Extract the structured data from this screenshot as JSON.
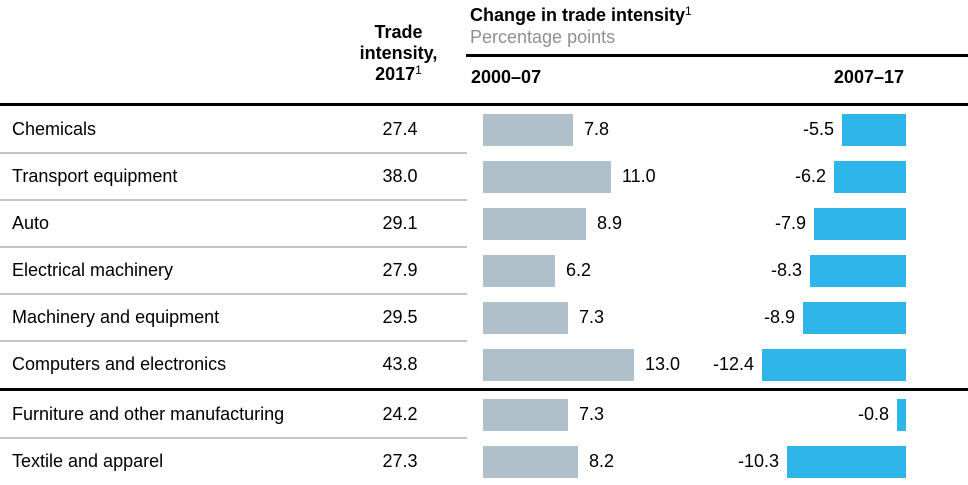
{
  "header": {
    "trade_col": {
      "lines": [
        "Trade",
        "intensity,",
        "2017"
      ],
      "footnote": "1"
    },
    "group": {
      "title": "Change in trade intensity",
      "footnote": "1",
      "subtitle": "Percentage points"
    },
    "periods": [
      "2000–07",
      "2007–17"
    ]
  },
  "colors": {
    "gray_bar": "#afc0ca",
    "blue_bar": "#2eb5e9",
    "subtitle_gray": "#8e9092",
    "separator": "#c5c5c5",
    "rule_black": "#000000"
  },
  "chart_data": {
    "type": "bar",
    "title": "Change in trade intensity",
    "subtitle": "Percentage points",
    "categories": [
      "Chemicals",
      "Transport equipment",
      "Auto",
      "Electrical machinery",
      "Machinery and equipment",
      "Computers and electronics",
      "Furniture and other manufacturing",
      "Textile and apparel"
    ],
    "series": [
      {
        "name": "Trade intensity, 2017",
        "values": [
          27.4,
          38.0,
          29.1,
          27.9,
          29.5,
          43.8,
          24.2,
          27.3
        ]
      },
      {
        "name": "Change in trade intensity, 2000–07 (percentage points)",
        "values": [
          7.8,
          11.0,
          8.9,
          6.2,
          7.3,
          13.0,
          7.3,
          8.2
        ]
      },
      {
        "name": "Change in trade intensity, 2007–17 (percentage points)",
        "values": [
          -5.5,
          -6.2,
          -7.9,
          -8.3,
          -8.9,
          -12.4,
          -0.8,
          -10.3
        ]
      }
    ],
    "section_break_after_category": "Computers and electronics",
    "value_labels": "one decimal place",
    "bar_orientation": "horizontal",
    "positive_bars_anchor": "left",
    "negative_bars_anchor": "right",
    "grid": false,
    "legend_position": "column headers"
  }
}
